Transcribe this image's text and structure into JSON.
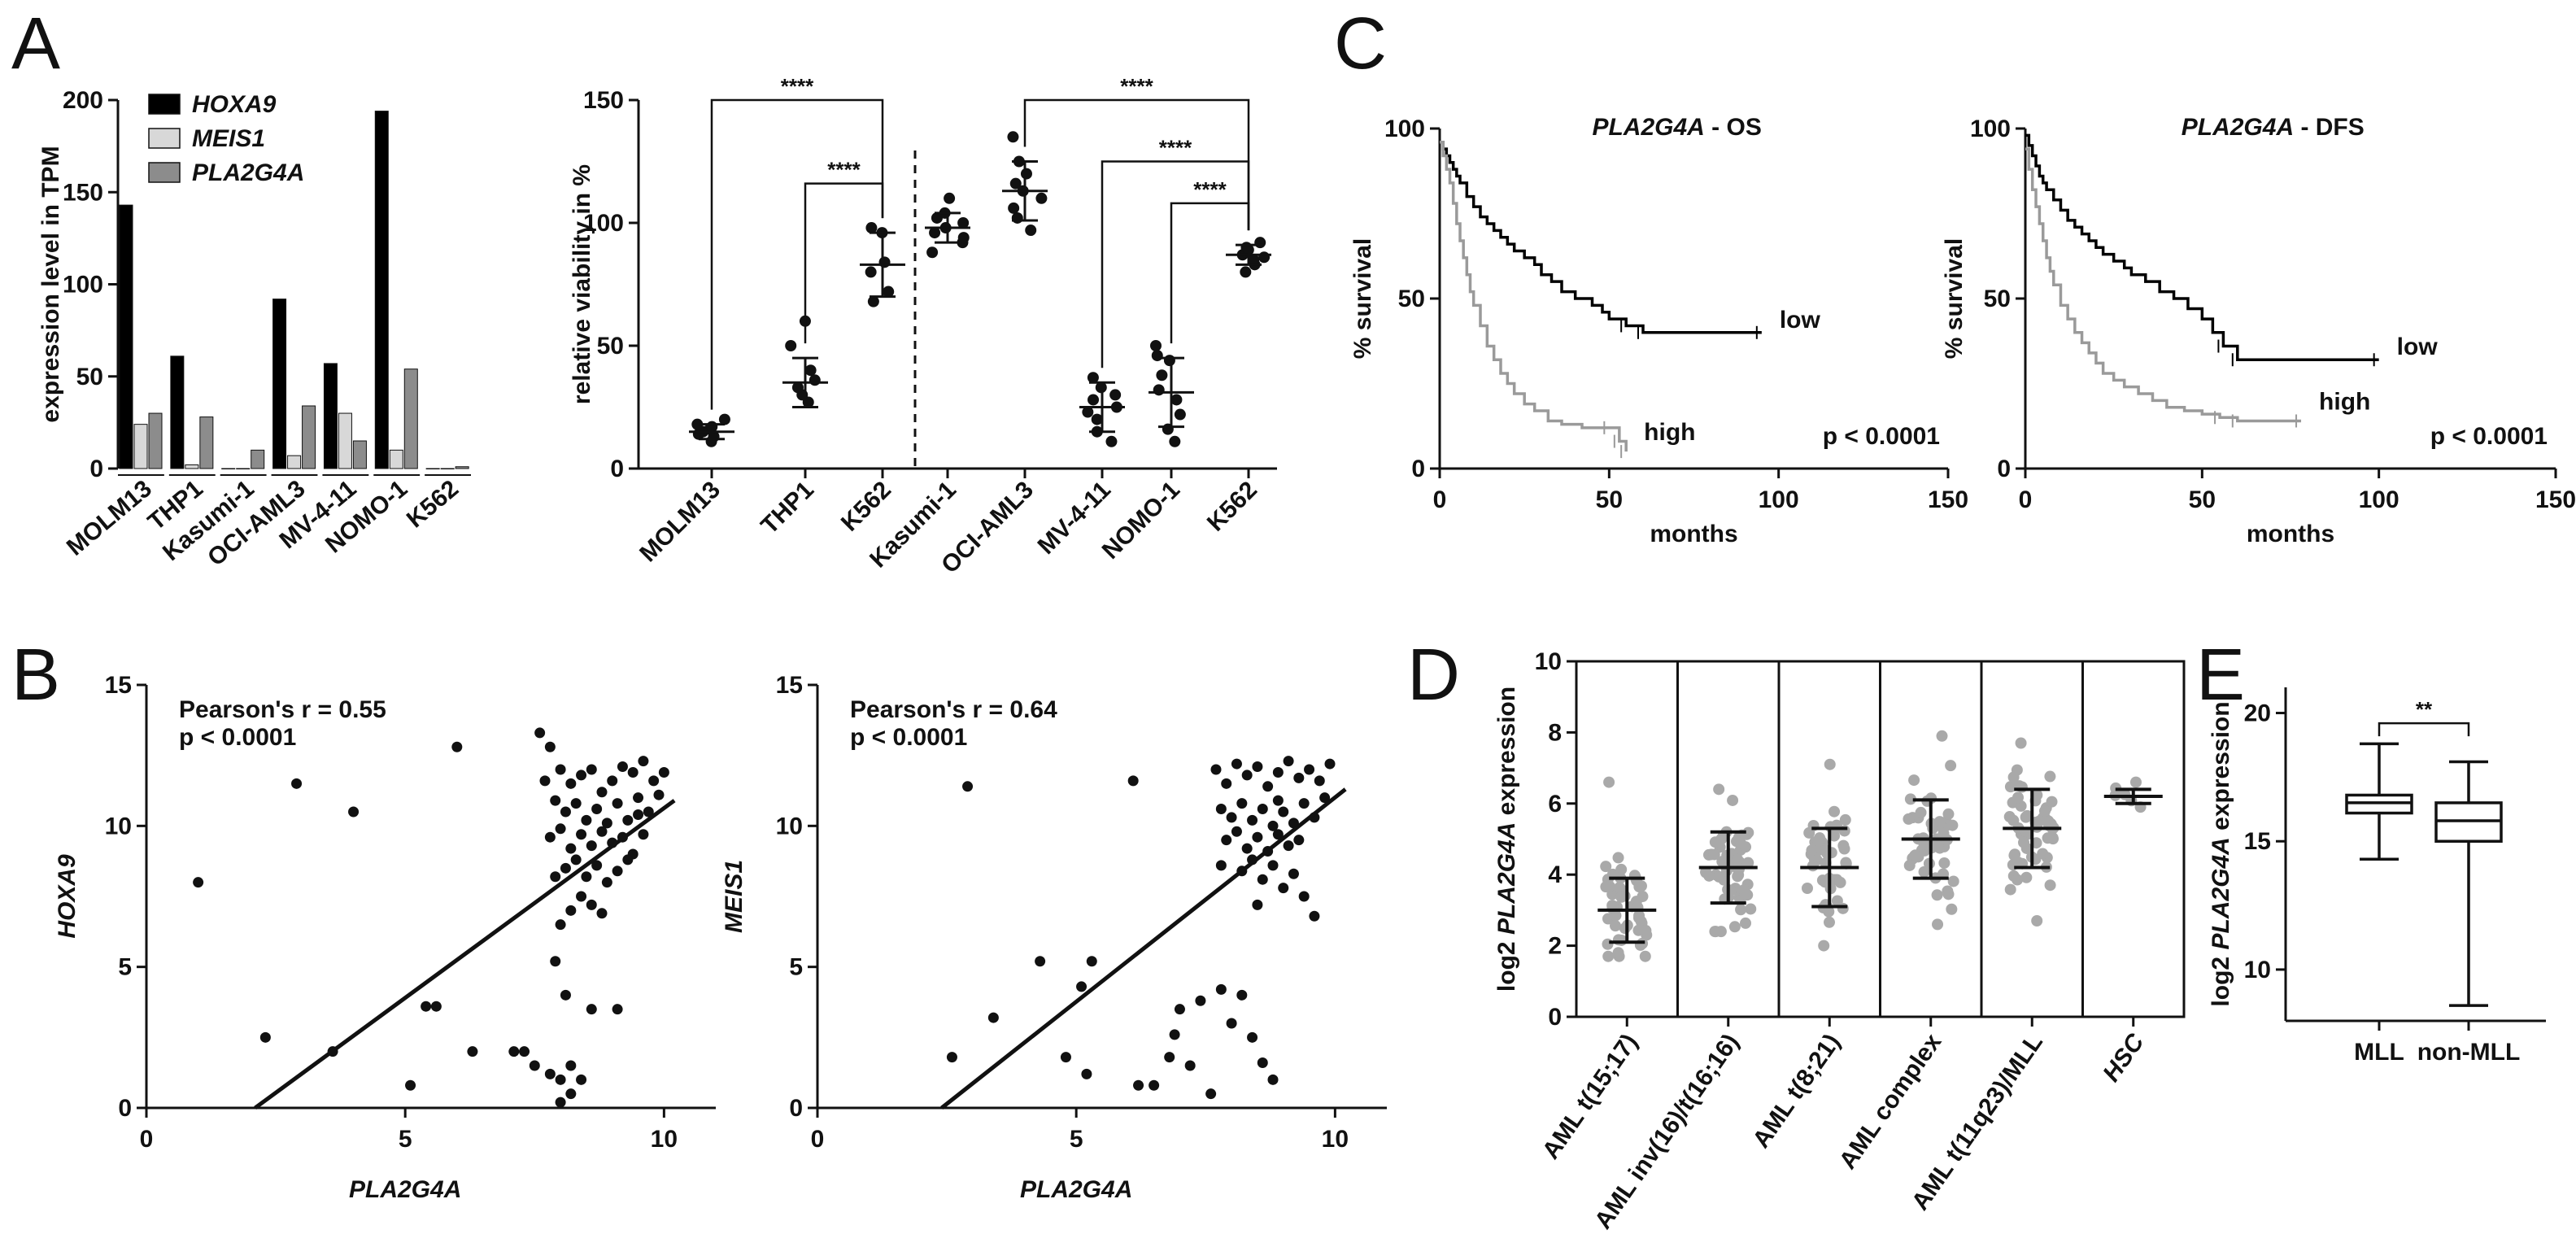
{
  "panel_letters": [
    "A",
    "B",
    "C",
    "D",
    "E"
  ],
  "chart_data": [
    {
      "id": "A1",
      "type": "bar",
      "ylabel": "expression level in TPM",
      "ylim": [
        0,
        200
      ],
      "yticks": [
        "0",
        "50",
        "100",
        "150",
        "200"
      ],
      "categories": [
        "MOLM13",
        "THP1",
        "Kasumi-1",
        "OCI-AML3",
        "MV-4-11",
        "NOMO-1",
        "K562"
      ],
      "legend_position": "top-left",
      "series": [
        {
          "name": "HOXA9",
          "color": "#000000",
          "values": [
            143,
            61,
            0,
            92,
            57,
            194,
            0
          ]
        },
        {
          "name": "MEIS1",
          "color": "#d8d8d8",
          "values": [
            24,
            2,
            0,
            7,
            30,
            10,
            0
          ]
        },
        {
          "name": "PLA2G4A",
          "color": "#8c8c8c",
          "values": [
            30,
            28,
            10,
            34,
            15,
            54,
            1
          ]
        }
      ]
    },
    {
      "id": "A2",
      "type": "scatter",
      "ylabel": "relative viability in %",
      "ylim": [
        0,
        150
      ],
      "yticks": [
        "0",
        "50",
        "100",
        "150"
      ],
      "categories": [
        "MOLM13",
        "THP1",
        "K562",
        "Kasumi-1",
        "OCI-AML3",
        "MV-4-11",
        "NOMO-1",
        "K562"
      ],
      "groups": [
        {
          "mean": 15,
          "sd": 3,
          "points": [
            11,
            13,
            14,
            15,
            16,
            17,
            18,
            20
          ]
        },
        {
          "mean": 35,
          "sd": 10,
          "points": [
            27,
            30,
            33,
            36,
            40,
            50,
            60
          ]
        },
        {
          "mean": 83,
          "sd": 13,
          "points": [
            68,
            72,
            80,
            84,
            96,
            98
          ]
        },
        {
          "mean": 98,
          "sd": 6,
          "points": [
            88,
            92,
            94,
            96,
            98,
            100,
            102,
            104,
            110
          ]
        },
        {
          "mean": 113,
          "sd": 12,
          "points": [
            97,
            102,
            106,
            110,
            113,
            116,
            120,
            125,
            135
          ]
        },
        {
          "mean": 25,
          "sd": 10,
          "points": [
            11,
            15,
            20,
            23,
            25,
            28,
            30,
            33,
            37
          ]
        },
        {
          "mean": 31,
          "sd": 14,
          "points": [
            11,
            16,
            22,
            28,
            32,
            38,
            44,
            46,
            50
          ]
        },
        {
          "mean": 87,
          "sd": 4,
          "points": [
            80,
            83,
            85,
            86,
            87,
            88,
            89,
            90,
            92
          ]
        }
      ],
      "significance": [
        {
          "from": 0,
          "to": 2,
          "label": "****",
          "level": 150
        },
        {
          "from": 1,
          "to": 2,
          "label": "****",
          "level": 116
        },
        {
          "from": 4,
          "to": 7,
          "label": "****",
          "level": 150
        },
        {
          "from": 5,
          "to": 7,
          "label": "****",
          "level": 125
        },
        {
          "from": 6,
          "to": 7,
          "label": "****",
          "level": 108
        }
      ]
    },
    {
      "id": "C1",
      "type": "line",
      "title_gene": "PLA2G4A",
      "title_rest": " - OS",
      "xlabel": "months",
      "ylabel": "% survival",
      "xlim": [
        0,
        150
      ],
      "ylim": [
        0,
        100
      ],
      "xticks": [
        "0",
        "50",
        "100",
        "150"
      ],
      "yticks": [
        "0",
        "50",
        "100"
      ],
      "p_text": "p < 0.0001",
      "series": [
        {
          "name": "low",
          "color": "#000000",
          "x": [
            0,
            1,
            2,
            3,
            4,
            5,
            6,
            8,
            10,
            12,
            14,
            16,
            18,
            20,
            22,
            25,
            28,
            30,
            33,
            36,
            40,
            45,
            48,
            50,
            55,
            60,
            95
          ],
          "y": [
            96,
            94,
            92,
            90,
            88,
            86,
            84,
            80,
            77,
            74,
            72,
            70,
            68,
            66,
            64,
            62,
            60,
            57,
            55,
            52,
            50,
            48,
            46,
            44,
            42,
            40,
            40
          ]
        },
        {
          "name": "high",
          "color": "#9a9a9a",
          "x": [
            0,
            1,
            2,
            3,
            4,
            5,
            6,
            7,
            8,
            9,
            10,
            12,
            14,
            16,
            18,
            20,
            22,
            25,
            28,
            32,
            36,
            42,
            50,
            53,
            55
          ],
          "y": [
            96,
            92,
            88,
            84,
            78,
            72,
            67,
            62,
            57,
            52,
            48,
            42,
            36,
            32,
            28,
            25,
            22,
            19,
            17,
            14,
            13,
            12,
            12,
            8,
            5
          ]
        }
      ]
    },
    {
      "id": "C2",
      "type": "line",
      "title_gene": "PLA2G4A",
      "title_rest": " - DFS",
      "xlabel": "months",
      "ylabel": "% survival",
      "xlim": [
        0,
        150
      ],
      "ylim": [
        0,
        100
      ],
      "xticks": [
        "0",
        "50",
        "100",
        "150"
      ],
      "yticks": [
        "0",
        "50",
        "100"
      ],
      "p_text": "p < 0.0001",
      "series": [
        {
          "name": "low",
          "color": "#000000",
          "x": [
            0,
            1,
            2,
            3,
            4,
            5,
            6,
            8,
            10,
            12,
            14,
            16,
            18,
            20,
            22,
            25,
            28,
            30,
            34,
            38,
            42,
            46,
            50,
            53,
            56,
            60,
            100
          ],
          "y": [
            98,
            95,
            92,
            89,
            86,
            84,
            82,
            79,
            76,
            73,
            71,
            69,
            67,
            65,
            63,
            61,
            59,
            57,
            55,
            52,
            50,
            47,
            44,
            40,
            36,
            32,
            32
          ]
        },
        {
          "name": "high",
          "color": "#9a9a9a",
          "x": [
            0,
            1,
            2,
            3,
            4,
            5,
            6,
            7,
            8,
            10,
            12,
            14,
            16,
            18,
            20,
            22,
            25,
            28,
            32,
            36,
            40,
            45,
            50,
            55,
            60,
            78
          ],
          "y": [
            94,
            88,
            82,
            77,
            72,
            67,
            62,
            58,
            54,
            48,
            44,
            40,
            37,
            34,
            31,
            28,
            26,
            24,
            22,
            20,
            18,
            17,
            16,
            15,
            14,
            14
          ]
        }
      ]
    },
    {
      "id": "B1",
      "type": "scatter",
      "xlabel": "PLA2G4A",
      "ylabel": "HOXA9",
      "xlim": [
        0,
        11
      ],
      "ylim": [
        0,
        15
      ],
      "xticks": [
        "0",
        "5",
        "10"
      ],
      "yticks": [
        "0",
        "5",
        "10",
        "15"
      ],
      "stat_line1": "Pearson's r = 0.55",
      "stat_line2": "p < 0.0001",
      "fit": {
        "x": [
          2.1,
          10.2
        ],
        "y": [
          0,
          10.9
        ]
      },
      "points": [
        [
          1,
          8
        ],
        [
          2.9,
          11.5
        ],
        [
          4,
          10.5
        ],
        [
          6,
          12.8
        ],
        [
          2.3,
          2.5
        ],
        [
          3.6,
          2
        ],
        [
          5.4,
          3.6
        ],
        [
          5.6,
          3.6
        ],
        [
          5.1,
          0.8
        ],
        [
          6.3,
          2
        ],
        [
          7.1,
          2
        ],
        [
          7.3,
          2
        ],
        [
          7.5,
          1.5
        ],
        [
          7.8,
          1.2
        ],
        [
          8,
          1
        ],
        [
          8.2,
          1.5
        ],
        [
          8.4,
          1
        ],
        [
          8.2,
          0.5
        ],
        [
          8,
          0.2
        ],
        [
          7.9,
          5.2
        ],
        [
          8.1,
          4
        ],
        [
          8.6,
          3.5
        ],
        [
          9.1,
          3.5
        ],
        [
          7.6,
          13.3
        ],
        [
          7.8,
          12.8
        ],
        [
          8,
          12
        ],
        [
          8.2,
          11.5
        ],
        [
          8.4,
          11.8
        ],
        [
          8.6,
          12
        ],
        [
          8.8,
          11.2
        ],
        [
          9,
          11.6
        ],
        [
          9.2,
          12.1
        ],
        [
          9.4,
          11.9
        ],
        [
          9.6,
          12.3
        ],
        [
          9.8,
          11.6
        ],
        [
          10,
          11.9
        ],
        [
          7.7,
          11.6
        ],
        [
          7.9,
          10.9
        ],
        [
          8.1,
          10.5
        ],
        [
          8.3,
          10.8
        ],
        [
          8.5,
          10.2
        ],
        [
          8.7,
          10.6
        ],
        [
          8.9,
          10.1
        ],
        [
          9.1,
          10.8
        ],
        [
          9.3,
          10.2
        ],
        [
          9.5,
          11
        ],
        [
          9.7,
          10.5
        ],
        [
          9.9,
          11.1
        ],
        [
          7.8,
          9.6
        ],
        [
          8,
          9.9
        ],
        [
          8.2,
          9.2
        ],
        [
          8.4,
          9.7
        ],
        [
          8.6,
          9.3
        ],
        [
          8.8,
          9.8
        ],
        [
          9,
          9.4
        ],
        [
          9.2,
          9.6
        ],
        [
          9.4,
          9
        ],
        [
          9.6,
          9.7
        ],
        [
          8.1,
          8.5
        ],
        [
          8.3,
          8.8
        ],
        [
          8.5,
          8.2
        ],
        [
          8.7,
          8.6
        ],
        [
          8.9,
          8
        ],
        [
          9.1,
          8.4
        ],
        [
          8.4,
          7.5
        ],
        [
          8.6,
          7.2
        ],
        [
          8.8,
          6.9
        ],
        [
          8.2,
          7
        ],
        [
          7.9,
          8.2
        ],
        [
          8,
          6.5
        ],
        [
          9.3,
          8.8
        ],
        [
          9.5,
          10.4
        ]
      ]
    },
    {
      "id": "B2",
      "type": "scatter",
      "xlabel": "PLA2G4A",
      "ylabel": "MEIS1",
      "xlim": [
        0,
        11
      ],
      "ylim": [
        0,
        15
      ],
      "xticks": [
        "0",
        "5",
        "10"
      ],
      "yticks": [
        "0",
        "5",
        "10",
        "15"
      ],
      "stat_line1": "Pearson's r = 0.64",
      "stat_line2": "p < 0.0001",
      "fit": {
        "x": [
          2.4,
          10.2
        ],
        "y": [
          0,
          11.3
        ]
      },
      "points": [
        [
          2.9,
          11.4
        ],
        [
          6.1,
          11.6
        ],
        [
          2.6,
          1.8
        ],
        [
          3.4,
          3.2
        ],
        [
          4.3,
          5.2
        ],
        [
          5.1,
          4.3
        ],
        [
          5.3,
          5.2
        ],
        [
          4.8,
          1.8
        ],
        [
          5.2,
          1.2
        ],
        [
          6.2,
          0.8
        ],
        [
          6.5,
          0.8
        ],
        [
          6.8,
          1.8
        ],
        [
          6.9,
          2.6
        ],
        [
          7,
          3.5
        ],
        [
          7.2,
          1.5
        ],
        [
          7.4,
          3.8
        ],
        [
          7.6,
          0.5
        ],
        [
          7.8,
          4.2
        ],
        [
          8,
          3
        ],
        [
          8.2,
          4
        ],
        [
          8.4,
          2.5
        ],
        [
          8.6,
          1.6
        ],
        [
          8.8,
          1
        ],
        [
          7.7,
          12
        ],
        [
          7.9,
          11.5
        ],
        [
          8.1,
          12.2
        ],
        [
          8.3,
          11.8
        ],
        [
          8.5,
          12.1
        ],
        [
          8.7,
          11.4
        ],
        [
          8.9,
          11.9
        ],
        [
          9.1,
          12.3
        ],
        [
          9.3,
          11.7
        ],
        [
          9.5,
          12
        ],
        [
          9.7,
          11.6
        ],
        [
          9.9,
          12.2
        ],
        [
          7.8,
          10.6
        ],
        [
          8,
          10.3
        ],
        [
          8.2,
          10.8
        ],
        [
          8.4,
          10.2
        ],
        [
          8.6,
          10.6
        ],
        [
          8.8,
          10
        ],
        [
          9,
          10.5
        ],
        [
          9.2,
          10.1
        ],
        [
          9.4,
          10.8
        ],
        [
          9.6,
          10.3
        ],
        [
          9.8,
          11
        ],
        [
          7.9,
          9.5
        ],
        [
          8.1,
          9.8
        ],
        [
          8.3,
          9.2
        ],
        [
          8.5,
          9.6
        ],
        [
          8.7,
          9.1
        ],
        [
          8.9,
          9.7
        ],
        [
          9.1,
          9.3
        ],
        [
          9.3,
          9.5
        ],
        [
          8.2,
          8.4
        ],
        [
          8.4,
          8.8
        ],
        [
          8.6,
          8.1
        ],
        [
          8.8,
          8.6
        ],
        [
          9,
          7.8
        ],
        [
          9.2,
          8.3
        ],
        [
          9.4,
          7.5
        ],
        [
          9.6,
          6.8
        ],
        [
          8.5,
          7.2
        ],
        [
          7.8,
          8.6
        ],
        [
          8.9,
          10.9
        ]
      ]
    },
    {
      "id": "D",
      "type": "scatter",
      "ylabel_pre": "log2 ",
      "ylabel_gene": "PLA2G4A",
      "ylabel_post": " expression",
      "ylim": [
        0,
        10
      ],
      "yticks": [
        "0",
        "2",
        "4",
        "6",
        "8",
        "10"
      ],
      "categories": [
        "AML t(15;17)",
        "AML inv(16)/t(16;16)",
        "AML t(8;21)",
        "AML complex",
        "AML t(11q23)/MLL",
        "HSC"
      ],
      "groups": [
        {
          "mean": 3.0,
          "sd": 0.9,
          "min": 1.7,
          "max": 6.6,
          "n": 50
        },
        {
          "mean": 4.2,
          "sd": 1.0,
          "min": 2.4,
          "max": 6.4,
          "n": 55
        },
        {
          "mean": 4.2,
          "sd": 1.1,
          "min": 2.0,
          "max": 7.1,
          "n": 45
        },
        {
          "mean": 5.0,
          "sd": 1.1,
          "min": 2.6,
          "max": 7.9,
          "n": 50
        },
        {
          "mean": 5.3,
          "sd": 1.1,
          "min": 2.7,
          "max": 7.7,
          "n": 55
        },
        {
          "mean": 6.2,
          "sd": 0.2,
          "min": 5.9,
          "max": 6.6,
          "n": 6
        }
      ]
    },
    {
      "id": "E",
      "type": "box",
      "ylabel_pre": "log2 ",
      "ylabel_gene": "PLA2G4A",
      "ylabel_post": " expression",
      "ylim": [
        8,
        21
      ],
      "yticks": [
        "10",
        "15",
        "20"
      ],
      "categories": [
        "MLL",
        "non-MLL"
      ],
      "boxes": [
        {
          "min": 14.3,
          "q1": 16.1,
          "median": 16.5,
          "q3": 16.8,
          "max": 18.8
        },
        {
          "min": 8.6,
          "q1": 15.0,
          "median": 15.8,
          "q3": 16.5,
          "max": 18.1
        }
      ],
      "significance": {
        "label": "**"
      }
    }
  ]
}
